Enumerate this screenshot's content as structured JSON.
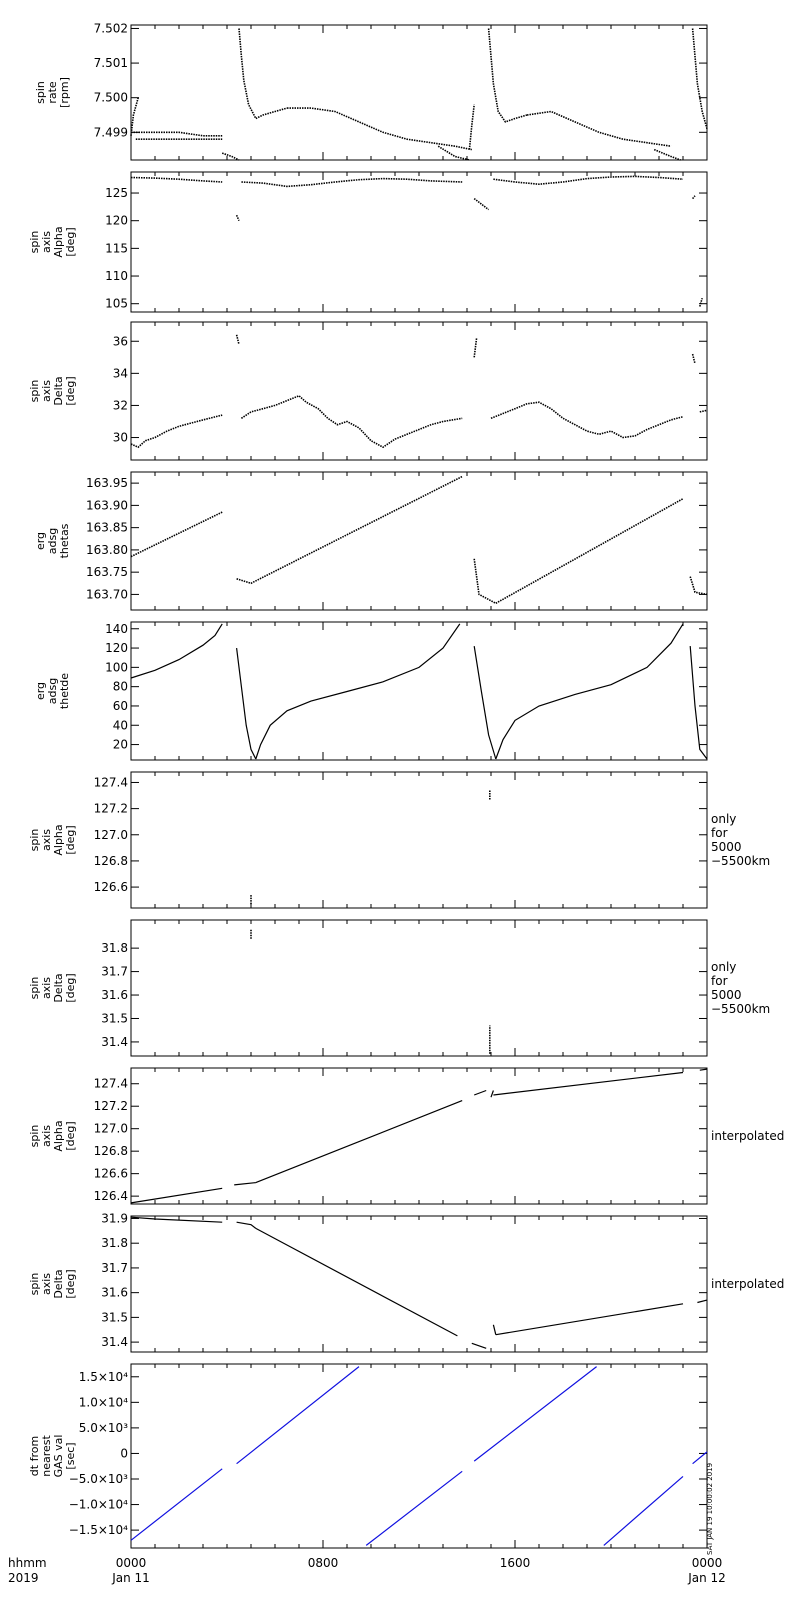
{
  "time_axis": {
    "row1_label": "hhmm",
    "row2_label": "2019",
    "ticks": [
      {
        "hours": 0,
        "top": "0000",
        "bottom": "Jan 11"
      },
      {
        "hours": 8,
        "top": "0800",
        "bottom": ""
      },
      {
        "hours": 16,
        "top": "1600",
        "bottom": ""
      },
      {
        "hours": 24,
        "top": "0000",
        "bottom": "Jan 12"
      }
    ],
    "range_hours": [
      0,
      24
    ]
  },
  "footer_stamp": "SAT JAN 19 10:00:02 2019",
  "colors": {
    "trace": "#000000",
    "dt_trace": "#1010e0",
    "axes": "#000000"
  },
  "chart_data": [
    {
      "type": "scatter",
      "ylabel": [
        "spin",
        "rate",
        "[rpm]"
      ],
      "side_note": [],
      "ylim": [
        7.4982,
        7.5021
      ],
      "yticks": [
        7.499,
        7.5,
        7.501,
        7.502
      ],
      "ytick_labels": [
        "7.499",
        "7.500",
        "7.501",
        "7.502"
      ],
      "series": [
        {
          "x": [
            0.0,
            0.1,
            0.3
          ],
          "y": [
            7.4989,
            7.4995,
            7.5
          ]
        },
        {
          "x": [
            0.0,
            1.0,
            2.0,
            3.0,
            3.8
          ],
          "y": [
            7.499,
            7.499,
            7.499,
            7.4989,
            7.4989
          ]
        },
        {
          "x": [
            0.2,
            1.0,
            2.0,
            3.0,
            3.8
          ],
          "y": [
            7.4988,
            7.4988,
            7.4988,
            7.4988,
            7.4988
          ]
        },
        {
          "x": [
            3.8,
            4.2,
            4.5
          ],
          "y": [
            7.4984,
            7.4983,
            7.4982
          ]
        },
        {
          "x": [
            4.5,
            4.6,
            4.7,
            4.9,
            5.2,
            5.5,
            6.0,
            6.5
          ],
          "y": [
            7.502,
            7.5012,
            7.5005,
            7.4998,
            7.4994,
            7.4995,
            7.4996,
            7.4997
          ]
        },
        {
          "x": [
            6.5,
            7.5,
            8.5,
            9.5,
            10.5,
            11.5,
            12.5,
            13.5,
            14.2
          ],
          "y": [
            7.4997,
            7.4997,
            7.4996,
            7.4993,
            7.499,
            7.4988,
            7.4987,
            7.4986,
            7.4985
          ]
        },
        {
          "x": [
            12.8,
            13.5,
            14.1
          ],
          "y": [
            7.4986,
            7.4983,
            7.4982
          ]
        },
        {
          "x": [
            14.1,
            14.2,
            14.3
          ],
          "y": [
            7.4985,
            7.4992,
            7.4998
          ]
        },
        {
          "x": [
            14.9,
            15.0,
            15.1,
            15.3,
            15.6,
            16.0,
            16.5
          ],
          "y": [
            7.502,
            7.5012,
            7.5004,
            7.4996,
            7.4993,
            7.4994,
            7.4995
          ]
        },
        {
          "x": [
            16.5,
            17.5,
            18.5,
            19.5,
            20.5,
            21.5,
            22.5
          ],
          "y": [
            7.4995,
            7.4996,
            7.4993,
            7.499,
            7.4988,
            7.4987,
            7.4986
          ]
        },
        {
          "x": [
            21.8,
            22.5,
            22.9
          ],
          "y": [
            7.4985,
            7.4983,
            7.4982
          ]
        },
        {
          "x": [
            23.4,
            23.5,
            23.6,
            23.8,
            24.0
          ],
          "y": [
            7.502,
            7.5012,
            7.5004,
            7.4996,
            7.4991
          ]
        }
      ]
    },
    {
      "type": "scatter",
      "ylabel": [
        "spin",
        "axis",
        "Alpha",
        "[deg]"
      ],
      "side_note": [],
      "ylim": [
        103.5,
        128.8
      ],
      "yticks": [
        105,
        110,
        115,
        120,
        125
      ],
      "ytick_labels": [
        "105",
        "110",
        "115",
        "120",
        "125"
      ],
      "series": [
        {
          "x": [
            0.0,
            1.0,
            2.0,
            3.0,
            3.8
          ],
          "y": [
            127.8,
            127.7,
            127.5,
            127.2,
            127.0
          ]
        },
        {
          "x": [
            4.4,
            4.5
          ],
          "y": [
            121.0,
            120.0
          ]
        },
        {
          "x": [
            4.6,
            5.5,
            6.5,
            7.5,
            8.5,
            9.5,
            10.5,
            11.5,
            12.5,
            13.8
          ],
          "y": [
            127.0,
            126.8,
            126.2,
            126.5,
            127.0,
            127.4,
            127.6,
            127.5,
            127.2,
            127.0
          ]
        },
        {
          "x": [
            14.3,
            14.6,
            14.9
          ],
          "y": [
            124.0,
            123.0,
            122.0
          ]
        },
        {
          "x": [
            15.1,
            16.0,
            17.0,
            18.0,
            19.0,
            20.0,
            21.0,
            22.0,
            23.0
          ],
          "y": [
            127.5,
            127.0,
            126.6,
            127.0,
            127.6,
            127.9,
            128.0,
            127.8,
            127.5
          ]
        },
        {
          "x": [
            23.4,
            23.5
          ],
          "y": [
            124.0,
            124.5
          ]
        },
        {
          "x": [
            23.7,
            23.8
          ],
          "y": [
            104.5,
            106.0
          ]
        }
      ]
    },
    {
      "type": "scatter",
      "ylabel": [
        "spin",
        "axis",
        "Delta",
        "[deg]"
      ],
      "side_note": [],
      "ylim": [
        28.6,
        37.2
      ],
      "yticks": [
        30,
        32,
        34,
        36
      ],
      "ytick_labels": [
        "30",
        "32",
        "34",
        "36"
      ],
      "series": [
        {
          "x": [
            0.0,
            0.3,
            0.6,
            1.0,
            1.5,
            2.0,
            2.5,
            3.0,
            3.8
          ],
          "y": [
            29.6,
            29.4,
            29.8,
            30.0,
            30.4,
            30.7,
            30.9,
            31.1,
            31.4
          ]
        },
        {
          "x": [
            4.4,
            4.5
          ],
          "y": [
            36.4,
            35.8
          ]
        },
        {
          "x": [
            4.6,
            5.0,
            5.5,
            6.0,
            6.5,
            7.0,
            7.3,
            7.8,
            8.2,
            8.6,
            9.0,
            9.5,
            10.0,
            10.5,
            11.0,
            11.5,
            12.0,
            12.5,
            13.0,
            13.8
          ],
          "y": [
            31.2,
            31.6,
            31.8,
            32.0,
            32.3,
            32.6,
            32.2,
            31.8,
            31.2,
            30.8,
            31.0,
            30.6,
            29.8,
            29.4,
            29.9,
            30.2,
            30.5,
            30.8,
            31.0,
            31.2
          ]
        },
        {
          "x": [
            14.3,
            14.4
          ],
          "y": [
            35.0,
            36.2
          ]
        },
        {
          "x": [
            15.0,
            15.5,
            16.0,
            16.5,
            17.0,
            17.5,
            18.0,
            18.5,
            19.0,
            19.5,
            20.0,
            20.5,
            21.0,
            21.5,
            22.0,
            22.5,
            23.0
          ],
          "y": [
            31.2,
            31.5,
            31.8,
            32.1,
            32.2,
            31.8,
            31.2,
            30.8,
            30.4,
            30.2,
            30.4,
            30.0,
            30.1,
            30.5,
            30.8,
            31.1,
            31.3
          ]
        },
        {
          "x": [
            23.4,
            23.5
          ],
          "y": [
            35.2,
            34.6
          ]
        },
        {
          "x": [
            23.7,
            24.0
          ],
          "y": [
            31.6,
            31.7
          ]
        }
      ]
    },
    {
      "type": "scatter",
      "ylabel": [
        "erg",
        "adsg",
        "thetas"
      ],
      "side_note": [],
      "ylim": [
        163.665,
        163.975
      ],
      "yticks": [
        163.7,
        163.75,
        163.8,
        163.85,
        163.9,
        163.95
      ],
      "ytick_labels": [
        "163.70",
        "163.75",
        "163.80",
        "163.85",
        "163.90",
        "163.95"
      ],
      "series": [
        {
          "x": [
            0.0,
            3.8
          ],
          "y": [
            163.785,
            163.885
          ]
        },
        {
          "x": [
            4.4,
            5.0,
            13.8
          ],
          "y": [
            163.735,
            163.725,
            163.965
          ]
        },
        {
          "x": [
            14.3,
            14.5,
            15.2
          ],
          "y": [
            163.78,
            163.7,
            163.68
          ]
        },
        {
          "x": [
            15.2,
            23.0
          ],
          "y": [
            163.68,
            163.915
          ]
        },
        {
          "x": [
            23.3,
            23.5,
            24.0
          ],
          "y": [
            163.74,
            163.705,
            163.7
          ]
        }
      ]
    },
    {
      "type": "line",
      "ylabel": [
        "erg",
        "adsg",
        "thetde"
      ],
      "side_note": [],
      "ylim": [
        4,
        147
      ],
      "yticks": [
        20,
        40,
        60,
        80,
        100,
        120,
        140
      ],
      "ytick_labels": [
        "20",
        "40",
        "60",
        "80",
        "100",
        "120",
        "140"
      ],
      "series": [
        {
          "x": [
            0.0,
            1.0,
            2.0,
            3.0,
            3.5,
            3.8
          ],
          "y": [
            89,
            97,
            108,
            123,
            133,
            145
          ]
        },
        {
          "x": [
            4.4,
            4.6,
            4.8,
            5.0,
            5.2
          ],
          "y": [
            120,
            80,
            40,
            15,
            5
          ]
        },
        {
          "x": [
            5.2,
            5.4,
            5.8,
            6.5,
            7.5,
            9.0,
            10.5,
            12.0,
            13.0,
            13.7
          ],
          "y": [
            5,
            20,
            40,
            55,
            65,
            75,
            85,
            100,
            120,
            145
          ]
        },
        {
          "x": [
            14.3,
            14.6,
            14.9,
            15.2
          ],
          "y": [
            122,
            75,
            30,
            5
          ]
        },
        {
          "x": [
            15.2,
            15.5,
            16.0,
            17.0,
            18.5,
            20.0,
            21.5,
            22.5,
            23.0
          ],
          "y": [
            5,
            25,
            45,
            60,
            72,
            82,
            100,
            125,
            145
          ]
        },
        {
          "x": [
            23.3,
            23.5,
            23.7,
            24.0
          ],
          "y": [
            122,
            60,
            15,
            5
          ]
        }
      ]
    },
    {
      "type": "scatter",
      "ylabel": [
        "spin",
        "axis",
        "Alpha",
        "[deg]"
      ],
      "side_note": [
        "only",
        "for",
        "5000",
        "−5500km"
      ],
      "ylim": [
        126.44,
        127.48
      ],
      "yticks": [
        126.6,
        126.8,
        127.0,
        127.2,
        127.4
      ],
      "ytick_labels": [
        "126.6",
        "126.8",
        "127.0",
        "127.2",
        "127.4"
      ],
      "series": [
        {
          "x": [
            5.0,
            5.0
          ],
          "y": [
            126.47,
            126.54
          ]
        },
        {
          "x": [
            14.95,
            14.95
          ],
          "y": [
            127.27,
            127.34
          ]
        }
      ]
    },
    {
      "type": "scatter",
      "ylabel": [
        "spin",
        "axis",
        "Delta",
        "[deg]"
      ],
      "side_note": [
        "only",
        "for",
        "5000",
        "−5500km"
      ],
      "ylim": [
        31.34,
        31.92
      ],
      "yticks": [
        31.4,
        31.5,
        31.6,
        31.7,
        31.8
      ],
      "ytick_labels": [
        "31.4",
        "31.5",
        "31.6",
        "31.7",
        "31.8"
      ],
      "series": [
        {
          "x": [
            5.0,
            5.0
          ],
          "y": [
            31.84,
            31.88
          ]
        },
        {
          "x": [
            14.95,
            14.95
          ],
          "y": [
            31.35,
            31.47
          ]
        }
      ]
    },
    {
      "type": "line",
      "ylabel": [
        "spin",
        "axis",
        "Alpha",
        "[deg]"
      ],
      "side_note": [
        "interpolated"
      ],
      "ylim": [
        126.33,
        127.54
      ],
      "yticks": [
        126.4,
        126.6,
        126.8,
        127.0,
        127.2,
        127.4
      ],
      "ytick_labels": [
        "126.4",
        "126.6",
        "126.8",
        "127.0",
        "127.2",
        "127.4"
      ],
      "series": [
        {
          "x": [
            0.0,
            3.8
          ],
          "y": [
            126.34,
            126.47
          ]
        },
        {
          "x": [
            4.3,
            5.2
          ],
          "y": [
            126.5,
            126.52
          ]
        },
        {
          "x": [
            5.2,
            13.8
          ],
          "y": [
            126.52,
            127.25
          ]
        },
        {
          "x": [
            14.3,
            14.8
          ],
          "y": [
            127.3,
            127.34
          ]
        },
        {
          "x": [
            15.0,
            15.1
          ],
          "y": [
            127.28,
            127.34
          ]
        },
        {
          "x": [
            15.1,
            23.0
          ],
          "y": [
            127.3,
            127.5
          ]
        },
        {
          "x": [
            23.7,
            24.0
          ],
          "y": [
            127.52,
            127.53
          ]
        }
      ]
    },
    {
      "type": "line",
      "ylabel": [
        "spin",
        "axis",
        "Delta",
        "[deg]"
      ],
      "side_note": [
        "interpolated"
      ],
      "ylim": [
        31.36,
        31.91
      ],
      "yticks": [
        31.4,
        31.5,
        31.6,
        31.7,
        31.8,
        31.9
      ],
      "ytick_labels": [
        "31.4",
        "31.5",
        "31.6",
        "31.7",
        "31.8",
        "31.9"
      ],
      "series": [
        {
          "x": [
            0.0,
            1.0,
            3.8
          ],
          "y": [
            31.905,
            31.898,
            31.885
          ]
        },
        {
          "x": [
            4.4,
            5.0,
            5.2
          ],
          "y": [
            31.885,
            31.875,
            31.86
          ]
        },
        {
          "x": [
            5.2,
            13.6
          ],
          "y": [
            31.86,
            31.425
          ]
        },
        {
          "x": [
            14.2,
            14.8
          ],
          "y": [
            31.395,
            31.375
          ]
        },
        {
          "x": [
            15.1,
            15.2
          ],
          "y": [
            31.47,
            31.43
          ]
        },
        {
          "x": [
            15.2,
            23.0
          ],
          "y": [
            31.43,
            31.555
          ]
        },
        {
          "x": [
            23.6,
            24.0
          ],
          "y": [
            31.56,
            31.57
          ]
        }
      ]
    },
    {
      "type": "line",
      "ylabel": [
        "dt from",
        "nearest",
        "GAS val",
        "[sec]"
      ],
      "side_note": [],
      "ylim": [
        -18500,
        17500
      ],
      "yticks": [
        -15000,
        -10000,
        -5000,
        0,
        5000,
        10000,
        15000
      ],
      "ytick_labels": [
        "−1.5×10⁴",
        "−1.0×10⁴",
        "−5.0×10³",
        "0",
        "5.0×10³",
        "1.0×10⁴",
        "1.5×10⁴"
      ],
      "series_color": "#1010e0",
      "series": [
        {
          "x": [
            0.0,
            3.8
          ],
          "y": [
            -17000,
            -3000
          ]
        },
        {
          "x": [
            4.4,
            9.5
          ],
          "y": [
            -2000,
            17000
          ]
        },
        {
          "x": [
            9.8,
            13.8
          ],
          "y": [
            -18000,
            -3500
          ]
        },
        {
          "x": [
            14.3,
            19.4
          ],
          "y": [
            -1500,
            17000
          ]
        },
        {
          "x": [
            19.7,
            23.0
          ],
          "y": [
            -18000,
            -4500
          ]
        },
        {
          "x": [
            23.4,
            24.0
          ],
          "y": [
            -2000,
            300
          ]
        }
      ]
    }
  ]
}
